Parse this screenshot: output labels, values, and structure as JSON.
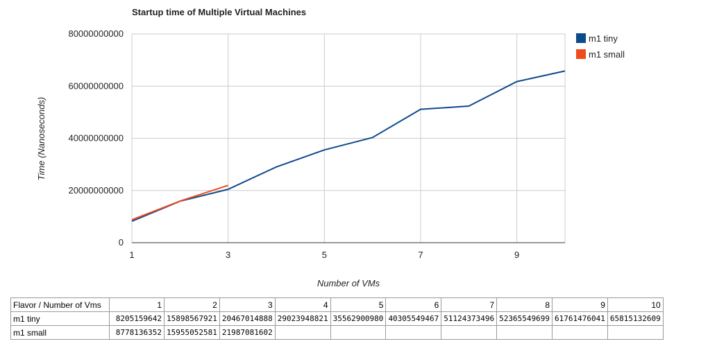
{
  "chart_data": {
    "type": "line",
    "title": "Startup time of Multiple Virtual Machines",
    "x_label": "Number of VMs",
    "y_label": "Time (Nanoseconds)",
    "x": [
      1,
      2,
      3,
      4,
      5,
      6,
      7,
      8,
      9,
      10
    ],
    "series": [
      {
        "name": "m1 tiny",
        "color": "#0d4a8a",
        "values": [
          8205159642,
          15898567921,
          20467014888,
          29023948821,
          35562900980,
          40305549467,
          51124373496,
          52365549699,
          61761476041,
          65815132609
        ]
      },
      {
        "name": "m1 small",
        "color": "#ee4c1c",
        "values": [
          8778136352,
          15955052581,
          21987081602,
          null,
          null,
          null,
          null,
          null,
          null,
          null
        ]
      }
    ],
    "xlim": [
      1,
      10
    ],
    "xticks": [
      1,
      3,
      5,
      7,
      9
    ],
    "ylim": [
      0,
      80000000000
    ],
    "yticks": [
      0,
      20000000000,
      40000000000,
      60000000000,
      80000000000
    ],
    "grid": true,
    "legend": "right"
  },
  "table": {
    "corner": "Flavor / Number of Vms"
  }
}
